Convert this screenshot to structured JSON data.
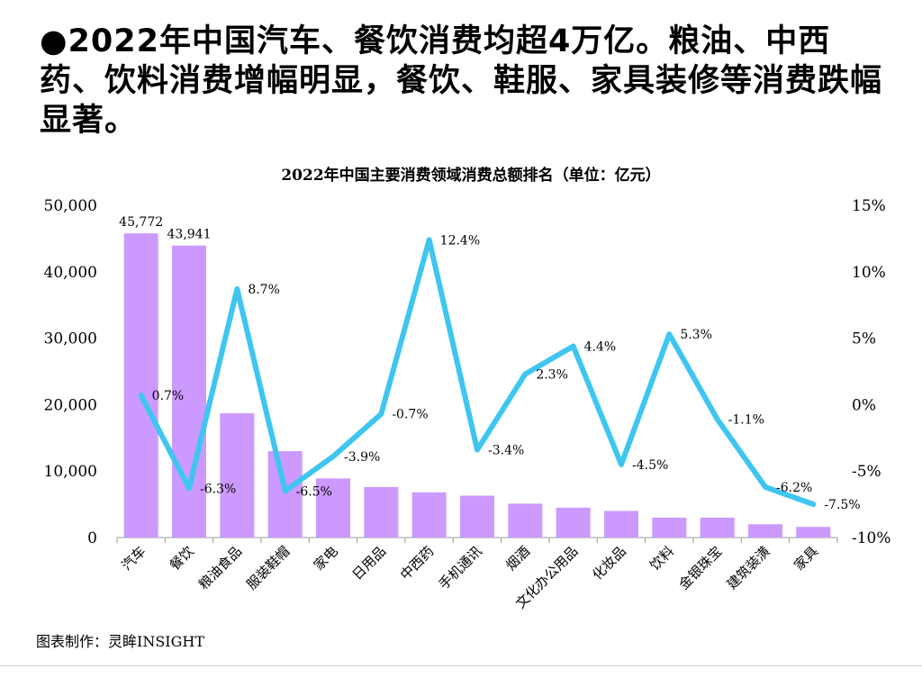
{
  "headline": "●2022年中国汽车、餐饮消费均超4万亿。粮油、中西药、饮料消费增幅明显，餐饮、鞋服、家具装修等消费跌幅显著。",
  "credit": "图表制作：灵眸INSIGHT",
  "colors": {
    "bar": "#cc99ff",
    "line": "#3ec6f0",
    "axis": "#999999",
    "text": "#000000"
  },
  "chart_data": {
    "type": "bar+line",
    "title": "2022年中国主要消费领域消费总额排名（单位：亿元）",
    "categories": [
      "汽车",
      "餐饮",
      "粮油食品",
      "服装鞋帽",
      "家电",
      "日用品",
      "中西药",
      "手机通讯",
      "烟酒",
      "文化办公用品",
      "化妆品",
      "饮料",
      "金银珠宝",
      "建筑装潢",
      "家具"
    ],
    "series": [
      {
        "name": "消费总额",
        "axis": "left",
        "type": "bar",
        "values": [
          45772,
          43941,
          18700,
          13000,
          8900,
          7600,
          6800,
          6300,
          5100,
          4500,
          4000,
          3000,
          3000,
          2000,
          1600
        ]
      },
      {
        "name": "增幅",
        "axis": "right",
        "type": "line",
        "values": [
          0.7,
          -6.3,
          8.7,
          -6.5,
          -3.9,
          -0.7,
          12.4,
          -3.4,
          2.3,
          4.4,
          -4.5,
          5.3,
          -1.1,
          -6.2,
          -7.5
        ]
      }
    ],
    "bar_labels": [
      "45,772",
      "43,941"
    ],
    "line_labels": [
      "0.7%",
      "-6.3%",
      "8.7%",
      "-6.5%",
      "-3.9%",
      "-0.7%",
      "12.4%",
      "-3.4%",
      "2.3%",
      "4.4%",
      "-4.5%",
      "5.3%",
      "-1.1%",
      "-6.2%",
      "-7.5%"
    ],
    "y_left": {
      "min": 0,
      "max": 50000,
      "ticks": [
        "0",
        "10,000",
        "20,000",
        "30,000",
        "40,000",
        "50,000"
      ]
    },
    "y_right": {
      "min": -10,
      "max": 15,
      "ticks": [
        "-10%",
        "-5%",
        "0%",
        "5%",
        "10%",
        "15%"
      ]
    }
  }
}
